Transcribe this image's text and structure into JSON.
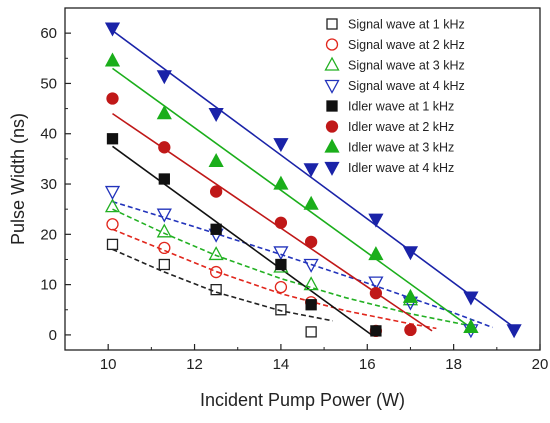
{
  "chart_data": {
    "type": "scatter",
    "title": "",
    "xlabel": "Incident Pump Power (W)",
    "ylabel": "Pulse Width (ns)",
    "xlim": [
      9,
      20
    ],
    "ylim": [
      -3,
      65
    ],
    "x_ticks": [
      10,
      12,
      14,
      16,
      18,
      20
    ],
    "y_ticks": [
      0,
      10,
      20,
      30,
      40,
      50,
      60
    ],
    "grid": false,
    "legend_position": "top-right",
    "series": [
      {
        "name": "Signal wave at 1 kHz",
        "marker": "square-open",
        "color": "#222222",
        "x": [
          10.1,
          11.3,
          12.5,
          14.0,
          14.7
        ],
        "y": [
          18.0,
          14.0,
          9.0,
          5.0,
          0.6
        ],
        "fit": {
          "style": "dashed",
          "x": [
            10.1,
            11.3,
            12.5,
            14.0,
            15.2
          ],
          "y": [
            17.0,
            12.5,
            8.5,
            4.8,
            2.8
          ]
        }
      },
      {
        "name": "Signal wave at 2 kHz",
        "marker": "circle-open",
        "color": "#e1261c",
        "x": [
          10.1,
          11.3,
          12.5,
          14.0,
          14.7,
          16.2,
          17.0
        ],
        "y": [
          22.0,
          17.3,
          12.5,
          9.5,
          6.5,
          0.8,
          1.0
        ],
        "fit": {
          "style": "dashed",
          "x": [
            10.1,
            11.3,
            12.5,
            14.0,
            15.5,
            17.0,
            17.6
          ],
          "y": [
            21.0,
            16.8,
            12.6,
            8.2,
            4.8,
            2.2,
            1.3
          ]
        }
      },
      {
        "name": "Signal wave at 3 kHz",
        "marker": "triangle-up-open",
        "color": "#22b022",
        "x": [
          10.1,
          11.3,
          12.5,
          14.0,
          14.7,
          17.0,
          18.4
        ],
        "y": [
          25.5,
          20.5,
          16.0,
          13.5,
          10.0,
          7.0,
          1.5
        ],
        "fit": {
          "style": "dashed",
          "x": [
            10.1,
            11.3,
            12.5,
            14.0,
            15.5,
            17.0,
            18.4
          ],
          "y": [
            25.0,
            20.2,
            15.8,
            11.2,
            7.4,
            4.2,
            1.8
          ]
        }
      },
      {
        "name": "Signal wave at 4 kHz",
        "marker": "triangle-down-open",
        "color": "#2233bb",
        "x": [
          10.1,
          11.3,
          12.5,
          14.0,
          14.7,
          16.2,
          17.0,
          18.4
        ],
        "y": [
          28.5,
          24.0,
          20.0,
          16.5,
          14.0,
          10.5,
          6.5,
          1.0
        ],
        "fit": {
          "style": "dashed",
          "x": [
            10.1,
            12.0,
            14.0,
            16.0,
            18.0,
            18.9
          ],
          "y": [
            26.5,
            21.5,
            16.0,
            10.3,
            4.4,
            1.5
          ]
        }
      },
      {
        "name": "Idler wave at 1 kHz",
        "marker": "square-filled",
        "color": "#111111",
        "x": [
          10.1,
          11.3,
          12.5,
          14.0,
          14.7,
          16.2
        ],
        "y": [
          39.0,
          31.0,
          21.0,
          14.0,
          6.0,
          0.8
        ],
        "fit": {
          "style": "solid",
          "x": [
            10.1,
            16.1
          ],
          "y": [
            37.5,
            0.0
          ]
        }
      },
      {
        "name": "Idler wave at 2 kHz",
        "marker": "circle-filled",
        "color": "#c01818",
        "x": [
          10.1,
          11.3,
          12.5,
          14.0,
          14.7,
          16.2,
          17.0
        ],
        "y": [
          47.0,
          37.3,
          28.5,
          22.3,
          18.5,
          8.3,
          1.0
        ],
        "fit": {
          "style": "solid",
          "x": [
            10.1,
            17.5
          ],
          "y": [
            44.0,
            0.8
          ]
        }
      },
      {
        "name": "Idler wave at 3 kHz",
        "marker": "triangle-up-filled",
        "color": "#1bae1b",
        "x": [
          10.1,
          11.3,
          12.5,
          14.0,
          14.7,
          16.2,
          17.0,
          18.4
        ],
        "y": [
          54.5,
          44.0,
          34.5,
          30.0,
          26.0,
          16.0,
          7.5,
          1.5
        ],
        "fit": {
          "style": "solid",
          "x": [
            10.1,
            18.5
          ],
          "y": [
            53.0,
            0.8
          ]
        }
      },
      {
        "name": "Idler wave at 4 kHz",
        "marker": "triangle-down-filled",
        "color": "#1a23a8",
        "x": [
          10.1,
          11.3,
          12.5,
          14.0,
          14.7,
          16.2,
          17.0,
          18.4,
          19.4
        ],
        "y": [
          61.0,
          51.5,
          44.0,
          38.0,
          33.0,
          23.0,
          16.5,
          7.5,
          1.0
        ],
        "fit": {
          "style": "solid",
          "x": [
            10.1,
            19.4
          ],
          "y": [
            60.5,
            1.5
          ]
        }
      }
    ]
  }
}
